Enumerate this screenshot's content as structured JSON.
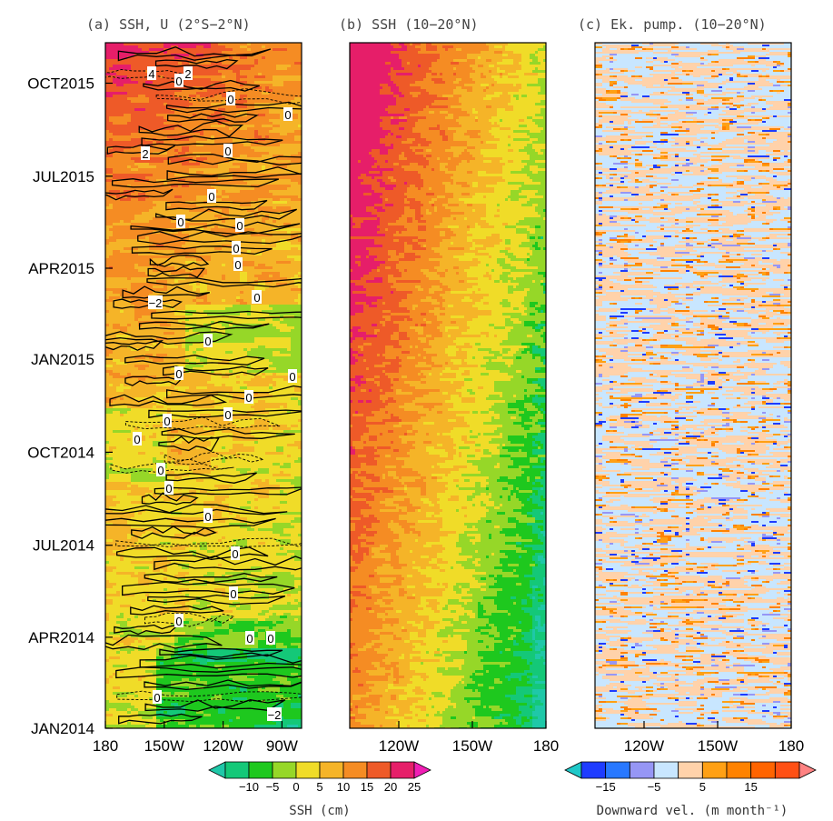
{
  "chart_data": [
    {
      "type": "heatmap",
      "title": "(a) SSH, U (2°S−2°N)",
      "x_tick_labels": [
        "180",
        "150W",
        "120W",
        "90W"
      ],
      "x_ticks": [
        180,
        210,
        240,
        270
      ],
      "xlim": [
        180,
        280
      ],
      "y_tick_labels": [
        "JAN2014",
        "APR2014",
        "JUL2014",
        "OCT2014",
        "JAN2015",
        "APR2015",
        "JUL2015",
        "OCT2015"
      ],
      "y_ticks": [
        "2014-01-01",
        "2014-04-01",
        "2014-07-01",
        "2014-10-01",
        "2015-01-01",
        "2015-04-01",
        "2015-07-01",
        "2015-10-01"
      ],
      "ylim": [
        "2014-01-01",
        "2015-11-10"
      ],
      "shaded_variable": "SSH (cm)",
      "contour_variable": "U",
      "contour_labels": [
        "4",
        "0",
        "2",
        "0",
        "0",
        "2",
        "0",
        "0",
        "0",
        "0",
        "0",
        "0",
        "0",
        "−2",
        "0",
        "0",
        "0",
        "0",
        "0",
        "0",
        "0",
        "0",
        "0",
        "0",
        "0",
        "0",
        "0",
        "0",
        "0",
        "0",
        "−2",
        "0",
        "0"
      ]
    },
    {
      "type": "heatmap",
      "title": "(b) SSH (10−20°N)",
      "x_tick_labels": [
        "120W",
        "150W",
        "180"
      ],
      "x_ticks": [
        240,
        210,
        180
      ],
      "xlim": [
        260,
        180
      ],
      "shaded_variable": "SSH (cm)"
    },
    {
      "type": "heatmap",
      "title": "(c) Ek. pump. (10−20°N)",
      "x_tick_labels": [
        "120W",
        "150W",
        "180"
      ],
      "x_ticks": [
        240,
        210,
        180
      ],
      "xlim": [
        260,
        180
      ],
      "shaded_variable": "Downward vel. (m month⁻¹)"
    }
  ],
  "colorbars": [
    {
      "title": "SSH (cm)",
      "tick_labels": [
        "−10",
        "−5",
        "0",
        "5",
        "10",
        "15",
        "20",
        "25"
      ],
      "colors": [
        "#1fc8a8",
        "#14c878",
        "#1ec81e",
        "#96d728",
        "#f0dc28",
        "#f5b428",
        "#f58c23",
        "#ee5a28",
        "#e61e69",
        "#f01eb4"
      ]
    },
    {
      "title": "Downward vel. (m month⁻¹)",
      "tick_labels": [
        "−15",
        "−5",
        "5",
        "15"
      ],
      "colors": [
        "#1fc8c8",
        "#1e3cff",
        "#2878ff",
        "#9696f5",
        "#c8e6ff",
        "#ffd2aa",
        "#ffa014",
        "#ff8200",
        "#ff6400",
        "#ff5014",
        "#ff8282"
      ]
    }
  ]
}
